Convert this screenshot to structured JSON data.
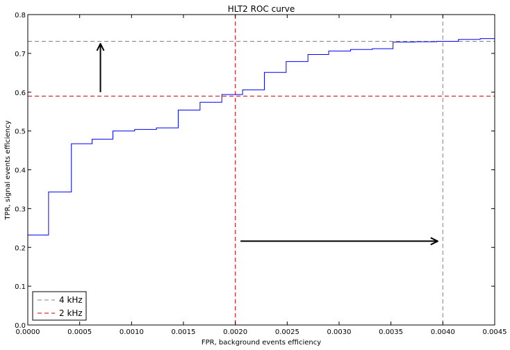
{
  "chart_data": {
    "type": "line",
    "title": "HLT2 ROC curve",
    "xlabel": "FPR, background events efficiency",
    "ylabel": "TPR, signal events efficiency",
    "xlim": [
      0,
      0.0045
    ],
    "ylim": [
      0,
      0.8
    ],
    "x_ticks": [
      0,
      0.0005,
      0.001,
      0.0015,
      0.002,
      0.0025,
      0.003,
      0.0035,
      0.004,
      0.0045
    ],
    "x_tick_labels": [
      "0.0000",
      "0.0005",
      "0.0010",
      "0.0015",
      "0.0020",
      "0.0025",
      "0.0030",
      "0.0035",
      "0.0040",
      "0.0045"
    ],
    "y_ticks": [
      0,
      0.1,
      0.2,
      0.3,
      0.4,
      0.5,
      0.6,
      0.7,
      0.8
    ],
    "y_tick_labels": [
      "0.0",
      "0.1",
      "0.2",
      "0.3",
      "0.4",
      "0.5",
      "0.6",
      "0.7",
      "0.8"
    ],
    "grid": false,
    "legend_position": "bottom-left",
    "series": [
      {
        "color": "#0000ff",
        "style": "step",
        "x": [
          0,
          0.0002,
          0.0002,
          0.00042,
          0.00042,
          0.00062,
          0.00062,
          0.00082,
          0.00082,
          0.00103,
          0.00103,
          0.00124,
          0.00124,
          0.00145,
          0.00145,
          0.00166,
          0.00166,
          0.00187,
          0.00187,
          0.00207,
          0.00207,
          0.00228,
          0.00228,
          0.00249,
          0.00249,
          0.0027,
          0.0027,
          0.0029,
          0.0029,
          0.00311,
          0.00311,
          0.00332,
          0.00332,
          0.00352,
          0.00352,
          0.00373,
          0.00373,
          0.00394,
          0.00394,
          0.00415,
          0.00415,
          0.00436,
          0.00436,
          0.0045
        ],
        "y": [
          0.232,
          0.232,
          0.343,
          0.343,
          0.467,
          0.467,
          0.479,
          0.479,
          0.5,
          0.5,
          0.504,
          0.504,
          0.508,
          0.508,
          0.554,
          0.554,
          0.574,
          0.574,
          0.594,
          0.594,
          0.606,
          0.606,
          0.651,
          0.651,
          0.679,
          0.679,
          0.697,
          0.697,
          0.706,
          0.706,
          0.71,
          0.71,
          0.712,
          0.712,
          0.729,
          0.729,
          0.73,
          0.73,
          0.731,
          0.731,
          0.736,
          0.736,
          0.738,
          0.738
        ]
      }
    ],
    "reference_lines": [
      {
        "label": "4 kHz",
        "color": "#808080",
        "y": 0.731,
        "x": 0.004
      },
      {
        "label": "2 kHz",
        "color": "#cc0000",
        "y": 0.59,
        "x": 0.002
      }
    ],
    "arrows": [
      {
        "x1": 0.0007,
        "y1": 0.6,
        "x2": 0.0007,
        "y2": 0.725
      },
      {
        "x1": 0.00205,
        "y1": 0.216,
        "x2": 0.00395,
        "y2": 0.216
      }
    ]
  }
}
